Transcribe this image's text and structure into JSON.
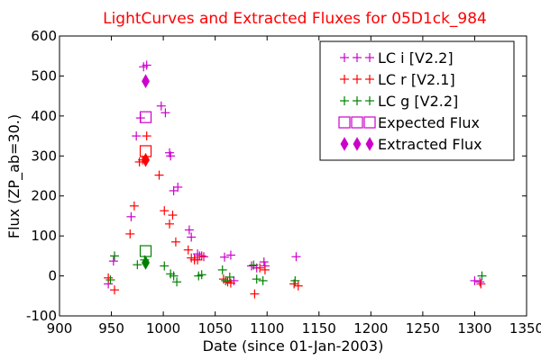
{
  "chart_data": {
    "type": "scatter",
    "title": "LightCurves and Extracted Fluxes for 05D1ck_984",
    "title_color": "#ff0000",
    "xlabel": "Date (since 01-Jan-2003)",
    "ylabel": "Flux (ZP_ab=30.)",
    "xlim": [
      900,
      1350
    ],
    "ylim": [
      -100,
      600
    ],
    "xticks": [
      "900",
      "950",
      "1000",
      "1050",
      "1100",
      "1150",
      "1200",
      "1250",
      "1300",
      "1350"
    ],
    "yticks": [
      "-100",
      "0",
      "100",
      "200",
      "300",
      "400",
      "500",
      "600"
    ],
    "grid": false,
    "legend_position": "top-right",
    "series": [
      {
        "name": "LC i [V2.2]",
        "marker": "plus",
        "color": "#cc00cc",
        "points": [
          [
            947,
            -20
          ],
          [
            952,
            37
          ],
          [
            969,
            148
          ],
          [
            974,
            350
          ],
          [
            978,
            395
          ],
          [
            981,
            523
          ],
          [
            984,
            527
          ],
          [
            998,
            425
          ],
          [
            1002,
            408
          ],
          [
            1006,
            308
          ],
          [
            1007,
            300
          ],
          [
            1010,
            213
          ],
          [
            1014,
            222
          ],
          [
            1025,
            115
          ],
          [
            1027,
            97
          ],
          [
            1030,
            45
          ],
          [
            1033,
            55
          ],
          [
            1035,
            50
          ],
          [
            1039,
            48
          ],
          [
            1059,
            47
          ],
          [
            1065,
            52
          ],
          [
            1068,
            -12
          ],
          [
            1085,
            25
          ],
          [
            1090,
            20
          ],
          [
            1097,
            35
          ],
          [
            1098,
            25
          ],
          [
            1128,
            48
          ],
          [
            1300,
            -12
          ],
          [
            1305,
            -15
          ]
        ]
      },
      {
        "name": "LC r [V2.1]",
        "marker": "plus",
        "color": "#ff0000",
        "points": [
          [
            947,
            -5
          ],
          [
            953,
            -35
          ],
          [
            968,
            105
          ],
          [
            972,
            175
          ],
          [
            977,
            285
          ],
          [
            980,
            290
          ],
          [
            984,
            350
          ],
          [
            996,
            252
          ],
          [
            1001,
            163
          ],
          [
            1006,
            130
          ],
          [
            1009,
            152
          ],
          [
            1012,
            85
          ],
          [
            1024,
            65
          ],
          [
            1027,
            45
          ],
          [
            1030,
            40
          ],
          [
            1033,
            40
          ],
          [
            1037,
            50
          ],
          [
            1058,
            -8
          ],
          [
            1062,
            -15
          ],
          [
            1065,
            -18
          ],
          [
            1088,
            -45
          ],
          [
            1093,
            20
          ],
          [
            1098,
            15
          ],
          [
            1126,
            -20
          ],
          [
            1130,
            -25
          ],
          [
            1306,
            -20
          ]
        ]
      },
      {
        "name": "LC g [V2.2]",
        "marker": "plus",
        "color": "#008000",
        "points": [
          [
            949,
            -10
          ],
          [
            953,
            50
          ],
          [
            975,
            28
          ],
          [
            982,
            40
          ],
          [
            1001,
            25
          ],
          [
            1007,
            5
          ],
          [
            1010,
            0
          ],
          [
            1013,
            -15
          ],
          [
            1034,
            0
          ],
          [
            1037,
            3
          ],
          [
            1057,
            15
          ],
          [
            1060,
            -12
          ],
          [
            1064,
            -3
          ],
          [
            1087,
            27
          ],
          [
            1090,
            -8
          ],
          [
            1096,
            -12
          ],
          [
            1127,
            -12
          ],
          [
            1307,
            0
          ]
        ]
      },
      {
        "name": "Expected Flux",
        "marker": "square",
        "color": "#cc00cc",
        "points": [
          [
            983,
            397
          ],
          [
            983,
            312
          ],
          [
            983,
            62
          ]
        ],
        "point_colors": [
          "#cc00cc",
          "#ff0000",
          "#008000"
        ]
      },
      {
        "name": "Extracted Flux",
        "marker": "diamond",
        "color": "#cc00cc",
        "points": [
          [
            983,
            487
          ],
          [
            983,
            290
          ],
          [
            983,
            33
          ]
        ],
        "point_colors": [
          "#cc00cc",
          "#ff0000",
          "#008000"
        ]
      }
    ]
  }
}
